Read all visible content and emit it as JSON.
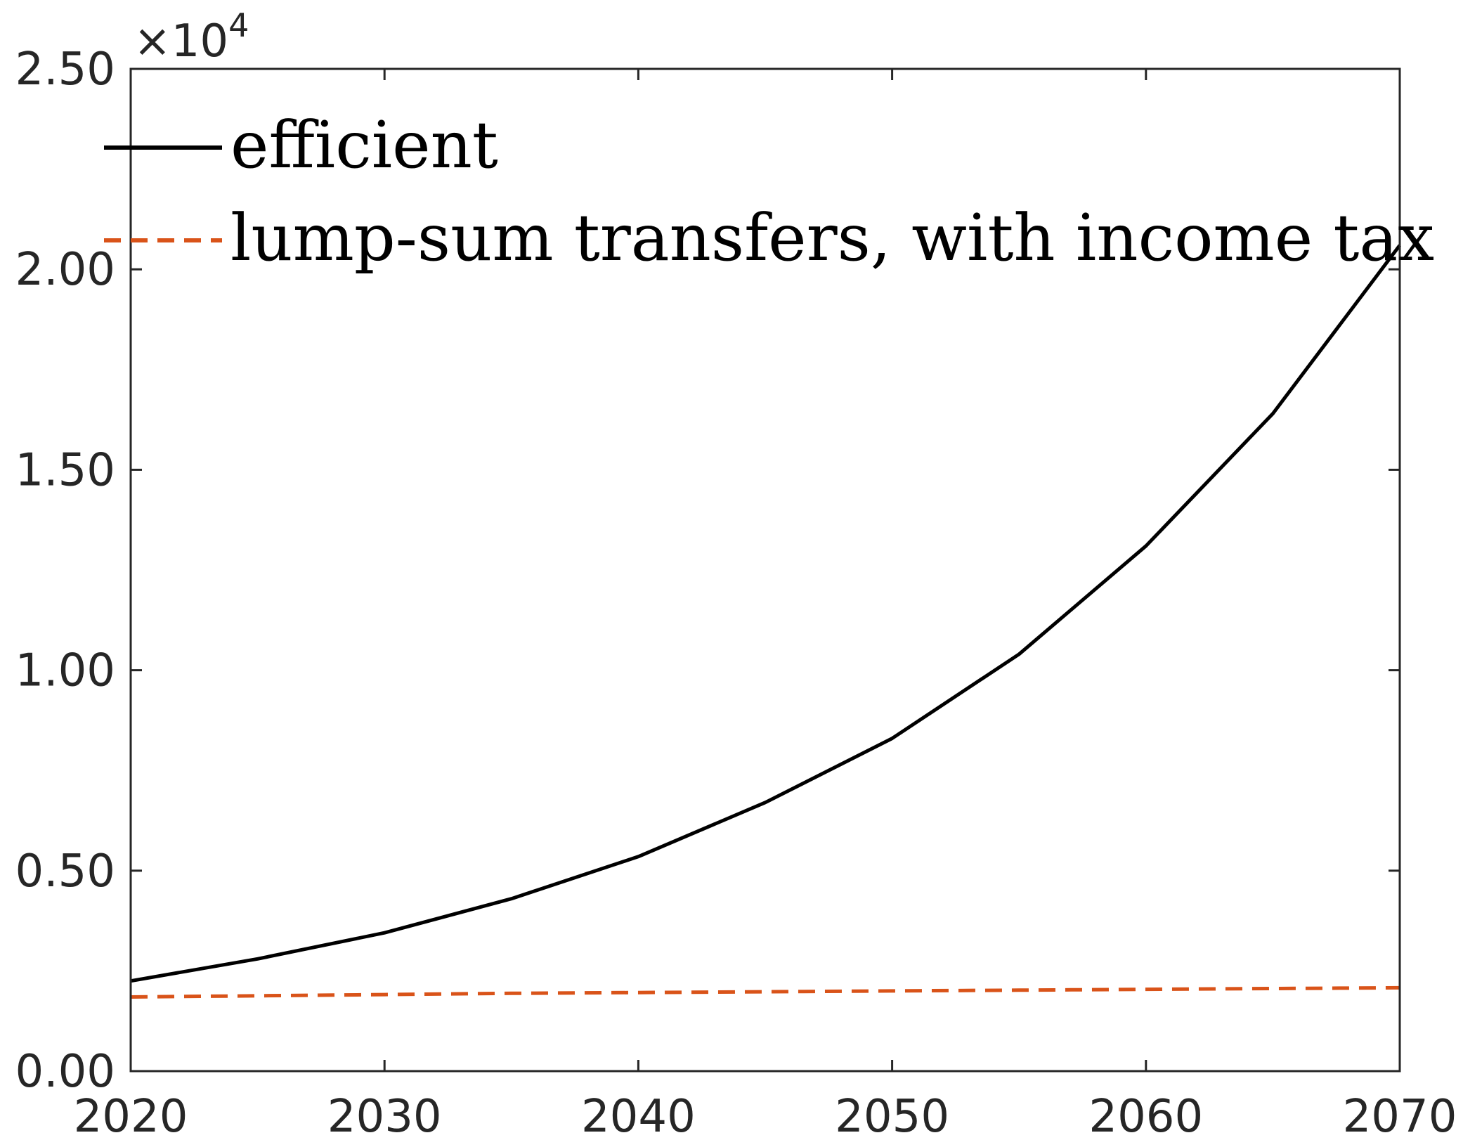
{
  "chart_data": {
    "type": "line",
    "title": "",
    "xlabel": "",
    "ylabel": "",
    "xlim": [
      2020,
      2070
    ],
    "ylim": [
      0,
      25000
    ],
    "x_ticks": [
      2020,
      2030,
      2040,
      2050,
      2060,
      2070
    ],
    "x_tick_labels": [
      "2020",
      "2030",
      "2040",
      "2050",
      "2060",
      "2070"
    ],
    "y_ticks": [
      0,
      5000,
      10000,
      15000,
      20000,
      25000
    ],
    "y_tick_labels": [
      "0.00",
      "0.50",
      "1.00",
      "1.50",
      "2.00",
      "2.50"
    ],
    "y_exponent_label": "×10",
    "y_exponent_power": "4",
    "grid": false,
    "legend_position": "top-left",
    "x": [
      2020,
      2025,
      2030,
      2035,
      2040,
      2045,
      2050,
      2055,
      2060,
      2065,
      2070
    ],
    "series": [
      {
        "name": "efficient",
        "color": "#000000",
        "style": "solid",
        "values": [
          2250,
          2800,
          3450,
          4300,
          5350,
          6700,
          8300,
          10400,
          13100,
          16400,
          20600
        ]
      },
      {
        "name": "lump-sum transfers, with income tax",
        "color": "#d95319",
        "style": "dashed",
        "values": [
          1850,
          1880,
          1910,
          1940,
          1960,
          1980,
          2000,
          2020,
          2040,
          2060,
          2080
        ]
      }
    ]
  }
}
